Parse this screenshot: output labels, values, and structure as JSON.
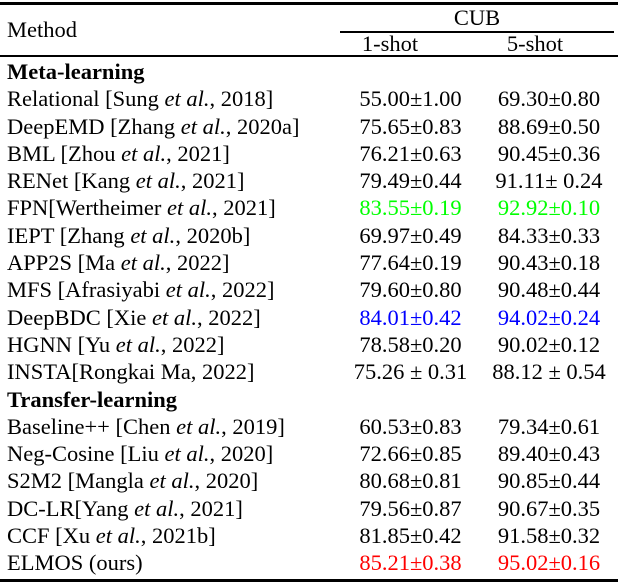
{
  "table": {
    "header": {
      "method": "Method",
      "group": "CUB",
      "col1": "1-shot",
      "col2": "5-shot"
    },
    "highlight_colors": {
      "best": "#ff0000",
      "second_best": "#0000ff",
      "third": "#00ff00"
    },
    "rows": [
      {
        "pre": "Meta-learning",
        "it": "",
        "post": "",
        "s1": "",
        "s5": "",
        "color": ""
      },
      {
        "pre": "Relational [Sung ",
        "it": "et al.",
        "post": ", 2018]",
        "s1": "55.00±1.00",
        "s5": "69.30±0.80",
        "color": ""
      },
      {
        "pre": "DeepEMD [Zhang ",
        "it": "et al.",
        "post": ", 2020a]",
        "s1": "75.65±0.83",
        "s5": "88.69±0.50",
        "color": ""
      },
      {
        "pre": "BML [Zhou ",
        "it": "et al.",
        "post": ", 2021]",
        "s1": "76.21±0.63",
        "s5": "90.45±0.36",
        "color": ""
      },
      {
        "pre": "RENet [Kang ",
        "it": "et al.",
        "post": ", 2021]",
        "s1": "79.49±0.44",
        "s5": "91.11± 0.24",
        "color": ""
      },
      {
        "pre": "FPN[Wertheimer ",
        "it": "et al.",
        "post": ", 2021]",
        "s1": "83.55±0.19",
        "s5": "92.92±0.10",
        "color": "#00ff00"
      },
      {
        "pre": "IEPT [Zhang ",
        "it": "et al.",
        "post": ", 2020b]",
        "s1": "69.97±0.49",
        "s5": "84.33±0.33",
        "color": ""
      },
      {
        "pre": "APP2S [Ma ",
        "it": "et al.",
        "post": ", 2022]",
        "s1": "77.64±0.19",
        "s5": "90.43±0.18",
        "color": ""
      },
      {
        "pre": "MFS [Afrasiyabi ",
        "it": "et al.",
        "post": ", 2022]",
        "s1": "79.60±0.80",
        "s5": "90.48±0.44",
        "color": ""
      },
      {
        "pre": "DeepBDC [Xie ",
        "it": "et al.",
        "post": ", 2022]",
        "s1": "84.01±0.42",
        "s5": "94.02±0.24",
        "color": "#0000ff"
      },
      {
        "pre": "HGNN [Yu ",
        "it": "et al.",
        "post": ", 2022]",
        "s1": "78.58±0.20",
        "s5": "90.02±0.12",
        "color": ""
      },
      {
        "pre": "INSTA[Rongkai Ma, 2022]",
        "it": "",
        "post": "",
        "s1": "75.26 ± 0.31",
        "s5": "88.12 ± 0.54",
        "color": ""
      },
      {
        "pre": "Transfer-learning",
        "it": "",
        "post": "",
        "s1": "",
        "s5": "",
        "color": ""
      },
      {
        "pre": "Baseline++ [Chen ",
        "it": "et al.",
        "post": ", 2019]",
        "s1": "60.53±0.83",
        "s5": "79.34±0.61",
        "color": ""
      },
      {
        "pre": "Neg-Cosine [Liu ",
        "it": "et al.",
        "post": ", 2020]",
        "s1": "72.66±0.85",
        "s5": "89.40±0.43",
        "color": ""
      },
      {
        "pre": "S2M2 [Mangla ",
        "it": "et al.",
        "post": ", 2020]",
        "s1": "80.68±0.81",
        "s5": "90.85±0.44",
        "color": ""
      },
      {
        "pre": "DC-LR[Yang ",
        "it": "et al.",
        "post": ", 2021]",
        "s1": "79.56±0.87",
        "s5": "90.67±0.35",
        "color": ""
      },
      {
        "pre": "CCF [Xu ",
        "it": "et al.",
        "post": ", 2021b]",
        "s1": "81.85±0.42",
        "s5": "91.58±0.32",
        "color": ""
      },
      {
        "pre": "ELMOS (ours)",
        "it": "",
        "post": "",
        "s1": "85.21±0.38",
        "s5": "95.02±0.16",
        "color": "#ff0000"
      }
    ]
  }
}
